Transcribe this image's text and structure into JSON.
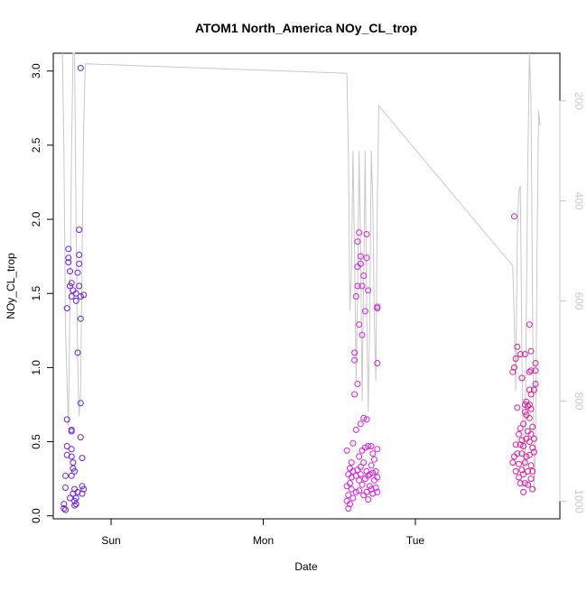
{
  "chart_data": {
    "type": "scatter",
    "title": "ATOM1 North_America NOy_CL_trop",
    "xlabel": "Date",
    "ylabel": "NOy_CL_trop",
    "x_ticks": [
      "Sun",
      "Mon",
      "Tue"
    ],
    "x_tick_values": [
      1.0,
      2.0,
      3.0
    ],
    "xlim": [
      0.62,
      3.95
    ],
    "ylim": [
      -0.02,
      3.12
    ],
    "y_ticks": [
      "0.0",
      "0.5",
      "1.0",
      "1.5",
      "2.0",
      "2.5",
      "3.0"
    ],
    "y_tick_values": [
      0.0,
      0.5,
      1.0,
      1.5,
      2.0,
      2.5,
      3.0
    ],
    "right_axis": {
      "label": "",
      "ticks": [
        "200",
        "400",
        "600",
        "800",
        "1000"
      ],
      "tick_values": [
        200,
        400,
        600,
        800,
        1000
      ],
      "range_top_to_bottom": [
        105,
        1035
      ],
      "color": "#c8c8c8"
    },
    "colors": {
      "day1_points": "#6a1fe6",
      "day2_points": "#d81ee0",
      "day3_points": "#e0199a",
      "pressure_line": "#c8c8c8",
      "axis": "#000000"
    },
    "series": [
      {
        "points": [
          {
            "x": 0.69,
            "y": 0.05
          },
          {
            "x": 0.69,
            "y": 0.08
          },
          {
            "x": 0.7,
            "y": 0.04
          },
          {
            "x": 0.7,
            "y": 0.19
          },
          {
            "x": 0.7,
            "y": 0.27
          },
          {
            "x": 0.71,
            "y": 0.41
          },
          {
            "x": 0.71,
            "y": 0.47
          },
          {
            "x": 0.71,
            "y": 0.65
          },
          {
            "x": 0.71,
            "y": 1.4
          },
          {
            "x": 0.72,
            "y": 1.71
          },
          {
            "x": 0.72,
            "y": 1.74
          },
          {
            "x": 0.72,
            "y": 1.8
          },
          {
            "x": 0.73,
            "y": 1.55
          },
          {
            "x": 0.73,
            "y": 1.65
          },
          {
            "x": 0.73,
            "y": 0.12
          },
          {
            "x": 0.74,
            "y": 0.58
          },
          {
            "x": 0.74,
            "y": 0.57
          },
          {
            "x": 0.74,
            "y": 0.45
          },
          {
            "x": 0.74,
            "y": 0.4
          },
          {
            "x": 0.74,
            "y": 0.27
          },
          {
            "x": 0.74,
            "y": 1.48
          },
          {
            "x": 0.74,
            "y": 1.57
          },
          {
            "x": 0.75,
            "y": 1.52
          },
          {
            "x": 0.75,
            "y": 0.36
          },
          {
            "x": 0.75,
            "y": 0.32
          },
          {
            "x": 0.75,
            "y": 0.15
          },
          {
            "x": 0.76,
            "y": 0.1
          },
          {
            "x": 0.76,
            "y": 0.07
          },
          {
            "x": 0.76,
            "y": 0.18
          },
          {
            "x": 0.76,
            "y": 0.3
          },
          {
            "x": 0.77,
            "y": 1.45
          },
          {
            "x": 0.77,
            "y": 1.5
          },
          {
            "x": 0.77,
            "y": 0.08
          },
          {
            "x": 0.77,
            "y": 0.12
          },
          {
            "x": 0.78,
            "y": 0.16
          },
          {
            "x": 0.78,
            "y": 1.1
          },
          {
            "x": 0.78,
            "y": 1.64
          },
          {
            "x": 0.79,
            "y": 1.7
          },
          {
            "x": 0.79,
            "y": 1.76
          },
          {
            "x": 0.79,
            "y": 1.93
          },
          {
            "x": 0.79,
            "y": 1.55
          },
          {
            "x": 0.8,
            "y": 1.48
          },
          {
            "x": 0.8,
            "y": 1.33
          },
          {
            "x": 0.8,
            "y": 3.02
          },
          {
            "x": 0.8,
            "y": 0.76
          },
          {
            "x": 0.8,
            "y": 0.53
          },
          {
            "x": 0.81,
            "y": 0.39
          },
          {
            "x": 0.81,
            "y": 0.2
          },
          {
            "x": 0.81,
            "y": 0.15
          },
          {
            "x": 0.82,
            "y": 1.49
          },
          {
            "x": 0.82,
            "y": 0.18
          }
        ]
      },
      {
        "points": [
          {
            "x": 2.55,
            "y": 0.44
          },
          {
            "x": 2.55,
            "y": 0.2
          },
          {
            "x": 2.55,
            "y": 0.1
          },
          {
            "x": 2.56,
            "y": 0.05
          },
          {
            "x": 2.56,
            "y": 0.14
          },
          {
            "x": 2.56,
            "y": 0.28
          },
          {
            "x": 2.57,
            "y": 0.22
          },
          {
            "x": 2.57,
            "y": 0.08
          },
          {
            "x": 2.57,
            "y": 0.32
          },
          {
            "x": 2.58,
            "y": 0.18
          },
          {
            "x": 2.58,
            "y": 0.26
          },
          {
            "x": 2.58,
            "y": 0.36
          },
          {
            "x": 2.59,
            "y": 0.3
          },
          {
            "x": 2.59,
            "y": 0.12
          },
          {
            "x": 2.59,
            "y": 0.49
          },
          {
            "x": 2.6,
            "y": 1.05
          },
          {
            "x": 2.6,
            "y": 1.1
          },
          {
            "x": 2.6,
            "y": 0.82
          },
          {
            "x": 2.61,
            "y": 1.48
          },
          {
            "x": 2.61,
            "y": 0.58
          },
          {
            "x": 2.61,
            "y": 0.27
          },
          {
            "x": 2.61,
            "y": 0.16
          },
          {
            "x": 2.62,
            "y": 1.55
          },
          {
            "x": 2.62,
            "y": 1.68
          },
          {
            "x": 2.62,
            "y": 1.85
          },
          {
            "x": 2.62,
            "y": 0.89
          },
          {
            "x": 2.62,
            "y": 0.31
          },
          {
            "x": 2.63,
            "y": 1.29
          },
          {
            "x": 2.63,
            "y": 0.4
          },
          {
            "x": 2.63,
            "y": 0.24
          },
          {
            "x": 2.63,
            "y": 0.17
          },
          {
            "x": 2.63,
            "y": 1.91
          },
          {
            "x": 2.64,
            "y": 1.75
          },
          {
            "x": 2.64,
            "y": 1.7
          },
          {
            "x": 2.64,
            "y": 0.62
          },
          {
            "x": 2.64,
            "y": 0.33
          },
          {
            "x": 2.64,
            "y": 0.28
          },
          {
            "x": 2.65,
            "y": 1.55
          },
          {
            "x": 2.65,
            "y": 1.22
          },
          {
            "x": 2.65,
            "y": 0.44
          },
          {
            "x": 2.65,
            "y": 0.21
          },
          {
            "x": 2.66,
            "y": 1.62
          },
          {
            "x": 2.66,
            "y": 0.66
          },
          {
            "x": 2.66,
            "y": 0.36
          },
          {
            "x": 2.66,
            "y": 0.14
          },
          {
            "x": 2.67,
            "y": 1.38
          },
          {
            "x": 2.67,
            "y": 0.46
          },
          {
            "x": 2.67,
            "y": 0.25
          },
          {
            "x": 2.68,
            "y": 1.74
          },
          {
            "x": 2.68,
            "y": 1.9
          },
          {
            "x": 2.68,
            "y": 0.65
          },
          {
            "x": 2.68,
            "y": 0.3
          },
          {
            "x": 2.68,
            "y": 0.16
          },
          {
            "x": 2.69,
            "y": 1.52
          },
          {
            "x": 2.69,
            "y": 0.47
          },
          {
            "x": 2.69,
            "y": 0.27
          },
          {
            "x": 2.69,
            "y": 0.11
          },
          {
            "x": 2.7,
            "y": 0.28
          },
          {
            "x": 2.7,
            "y": 0.2
          },
          {
            "x": 2.71,
            "y": 0.47
          },
          {
            "x": 2.71,
            "y": 0.34
          },
          {
            "x": 2.71,
            "y": 0.18
          },
          {
            "x": 2.72,
            "y": 0.42
          },
          {
            "x": 2.72,
            "y": 0.29
          },
          {
            "x": 2.72,
            "y": 0.15
          },
          {
            "x": 2.73,
            "y": 0.38
          },
          {
            "x": 2.73,
            "y": 0.24
          },
          {
            "x": 2.74,
            "y": 0.3
          },
          {
            "x": 2.74,
            "y": 0.19
          },
          {
            "x": 2.75,
            "y": 1.41
          },
          {
            "x": 2.75,
            "y": 1.4
          },
          {
            "x": 2.75,
            "y": 1.03
          },
          {
            "x": 2.75,
            "y": 0.45
          },
          {
            "x": 2.75,
            "y": 0.26
          },
          {
            "x": 2.75,
            "y": 0.16
          }
        ]
      },
      {
        "points": [
          {
            "x": 3.64,
            "y": 0.36
          },
          {
            "x": 3.64,
            "y": 0.97
          },
          {
            "x": 3.65,
            "y": 2.02
          },
          {
            "x": 3.65,
            "y": 1.0
          },
          {
            "x": 3.65,
            "y": 0.4
          },
          {
            "x": 3.66,
            "y": 0.48
          },
          {
            "x": 3.66,
            "y": 0.3
          },
          {
            "x": 3.66,
            "y": 1.06
          },
          {
            "x": 3.67,
            "y": 0.42
          },
          {
            "x": 3.67,
            "y": 0.73
          },
          {
            "x": 3.67,
            "y": 1.14
          },
          {
            "x": 3.68,
            "y": 0.55
          },
          {
            "x": 3.68,
            "y": 0.26
          },
          {
            "x": 3.68,
            "y": 0.35
          },
          {
            "x": 3.69,
            "y": 0.59
          },
          {
            "x": 3.69,
            "y": 0.48
          },
          {
            "x": 3.69,
            "y": 1.09
          },
          {
            "x": 3.69,
            "y": 0.22
          },
          {
            "x": 3.7,
            "y": 0.51
          },
          {
            "x": 3.7,
            "y": 0.31
          },
          {
            "x": 3.7,
            "y": 0.42
          },
          {
            "x": 3.7,
            "y": 0.93
          },
          {
            "x": 3.71,
            "y": 0.16
          },
          {
            "x": 3.71,
            "y": 0.28
          },
          {
            "x": 3.71,
            "y": 0.47
          },
          {
            "x": 3.71,
            "y": 0.62
          },
          {
            "x": 3.72,
            "y": 1.09
          },
          {
            "x": 3.72,
            "y": 0.7
          },
          {
            "x": 3.72,
            "y": 0.75
          },
          {
            "x": 3.72,
            "y": 0.36
          },
          {
            "x": 3.72,
            "y": 0.22
          },
          {
            "x": 3.73,
            "y": 0.77
          },
          {
            "x": 3.73,
            "y": 0.68
          },
          {
            "x": 3.73,
            "y": 0.52
          },
          {
            "x": 3.73,
            "y": 0.4
          },
          {
            "x": 3.74,
            "y": 0.74
          },
          {
            "x": 3.74,
            "y": 0.57
          },
          {
            "x": 3.74,
            "y": 0.3
          },
          {
            "x": 3.74,
            "y": 0.21
          },
          {
            "x": 3.75,
            "y": 1.29
          },
          {
            "x": 3.75,
            "y": 0.97
          },
          {
            "x": 3.75,
            "y": 0.85
          },
          {
            "x": 3.75,
            "y": 0.75
          },
          {
            "x": 3.75,
            "y": 0.66
          },
          {
            "x": 3.75,
            "y": 0.5
          },
          {
            "x": 3.75,
            "y": 0.41
          },
          {
            "x": 3.76,
            "y": 1.11
          },
          {
            "x": 3.76,
            "y": 0.98
          },
          {
            "x": 3.76,
            "y": 0.82
          },
          {
            "x": 3.76,
            "y": 0.72
          },
          {
            "x": 3.76,
            "y": 0.55
          },
          {
            "x": 3.76,
            "y": 0.34
          },
          {
            "x": 3.76,
            "y": 0.25
          },
          {
            "x": 3.77,
            "y": 0.6
          },
          {
            "x": 3.77,
            "y": 0.46
          },
          {
            "x": 3.77,
            "y": 0.3
          },
          {
            "x": 3.77,
            "y": 0.18
          },
          {
            "x": 3.78,
            "y": 0.85
          },
          {
            "x": 3.78,
            "y": 0.52
          },
          {
            "x": 3.78,
            "y": 0.43
          },
          {
            "x": 3.79,
            "y": 0.98
          },
          {
            "x": 3.79,
            "y": 0.89
          },
          {
            "x": 3.79,
            "y": 1.03
          }
        ]
      }
    ],
    "pressure_line": [
      {
        "x": 0.68,
        "y": 0
      },
      {
        "x": 0.69,
        "y": 300
      },
      {
        "x": 0.7,
        "y": 650
      },
      {
        "x": 0.71,
        "y": 760
      },
      {
        "x": 0.72,
        "y": 850
      },
      {
        "x": 0.73,
        "y": 600
      },
      {
        "x": 0.74,
        "y": 300
      },
      {
        "x": 0.75,
        "y": 0
      },
      {
        "x": 0.76,
        "y": 100
      },
      {
        "x": 0.77,
        "y": 450
      },
      {
        "x": 0.78,
        "y": 720
      },
      {
        "x": 0.79,
        "y": 830
      },
      {
        "x": 0.8,
        "y": 780
      },
      {
        "x": 0.81,
        "y": 500
      },
      {
        "x": 0.82,
        "y": 250
      },
      {
        "x": 0.83,
        "y": 126
      },
      {
        "x": 2.55,
        "y": 145
      },
      {
        "x": 2.56,
        "y": 300
      },
      {
        "x": 2.57,
        "y": 620
      },
      {
        "x": 2.58,
        "y": 540
      },
      {
        "x": 2.59,
        "y": 300
      },
      {
        "x": 2.6,
        "y": 500
      },
      {
        "x": 2.61,
        "y": 760
      },
      {
        "x": 2.62,
        "y": 600
      },
      {
        "x": 2.63,
        "y": 300
      },
      {
        "x": 2.64,
        "y": 480
      },
      {
        "x": 2.65,
        "y": 800
      },
      {
        "x": 2.66,
        "y": 550
      },
      {
        "x": 2.67,
        "y": 300
      },
      {
        "x": 2.68,
        "y": 620
      },
      {
        "x": 2.69,
        "y": 820
      },
      {
        "x": 2.7,
        "y": 640
      },
      {
        "x": 2.71,
        "y": 300
      },
      {
        "x": 2.72,
        "y": 400
      },
      {
        "x": 2.73,
        "y": 640
      },
      {
        "x": 2.74,
        "y": 760
      },
      {
        "x": 2.75,
        "y": 400
      },
      {
        "x": 2.76,
        "y": 210
      },
      {
        "x": 3.64,
        "y": 530
      },
      {
        "x": 3.65,
        "y": 640
      },
      {
        "x": 3.66,
        "y": 780
      },
      {
        "x": 3.67,
        "y": 470
      },
      {
        "x": 3.68,
        "y": 380
      },
      {
        "x": 3.69,
        "y": 370
      },
      {
        "x": 3.7,
        "y": 700
      },
      {
        "x": 3.71,
        "y": 950
      },
      {
        "x": 3.72,
        "y": 920
      },
      {
        "x": 3.73,
        "y": 600
      },
      {
        "x": 3.74,
        "y": 300
      },
      {
        "x": 3.75,
        "y": 0
      },
      {
        "x": 3.76,
        "y": 200
      },
      {
        "x": 3.77,
        "y": 600
      },
      {
        "x": 3.78,
        "y": 980
      },
      {
        "x": 3.79,
        "y": 900
      },
      {
        "x": 3.8,
        "y": 500
      },
      {
        "x": 3.81,
        "y": 220
      },
      {
        "x": 3.82,
        "y": 250
      }
    ]
  }
}
